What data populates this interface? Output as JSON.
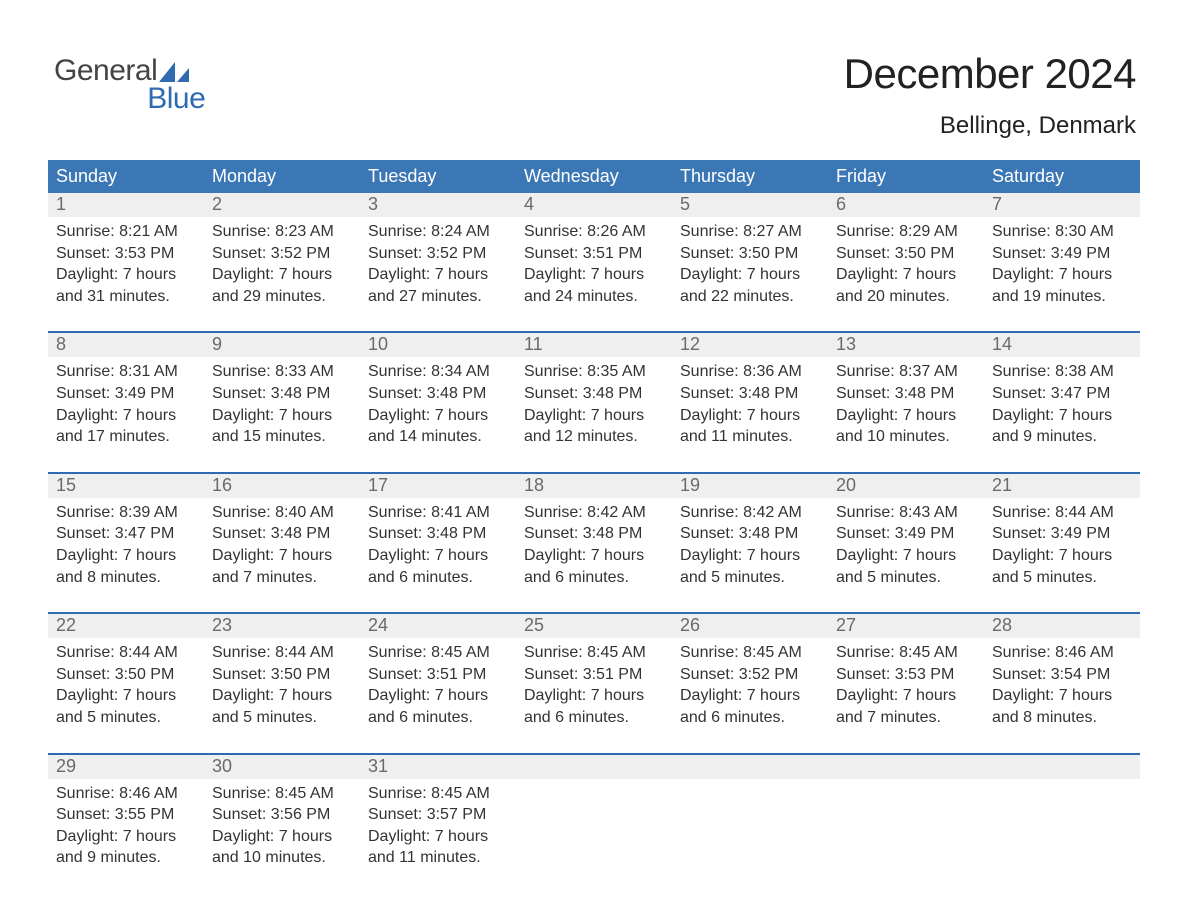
{
  "logo": {
    "text1": "General",
    "text2": "Blue",
    "color_text1": "#444444",
    "color_text2": "#2f6bb0",
    "sail_color": "#2f6bb0"
  },
  "header": {
    "month_title": "December 2024",
    "location": "Bellinge, Denmark",
    "title_fontsize": 42,
    "location_fontsize": 24,
    "title_color": "#222222"
  },
  "colors": {
    "calendar_header_bg": "#3c77b5",
    "calendar_header_text": "#ffffff",
    "week_separator": "#2f6bb0",
    "daynum_bg": "#efefef",
    "daynum_text": "#6a6a6a",
    "body_text": "#333333",
    "page_bg": "#ffffff"
  },
  "fonts": {
    "family": "Arial",
    "header_day_size": 18,
    "daynum_size": 18,
    "body_size": 16
  },
  "days_of_week": [
    "Sunday",
    "Monday",
    "Tuesday",
    "Wednesday",
    "Thursday",
    "Friday",
    "Saturday"
  ],
  "weeks": [
    [
      {
        "date": "1",
        "sunrise": "Sunrise: 8:21 AM",
        "sunset": "Sunset: 3:53 PM",
        "daylight1": "Daylight: 7 hours",
        "daylight2": "and 31 minutes."
      },
      {
        "date": "2",
        "sunrise": "Sunrise: 8:23 AM",
        "sunset": "Sunset: 3:52 PM",
        "daylight1": "Daylight: 7 hours",
        "daylight2": "and 29 minutes."
      },
      {
        "date": "3",
        "sunrise": "Sunrise: 8:24 AM",
        "sunset": "Sunset: 3:52 PM",
        "daylight1": "Daylight: 7 hours",
        "daylight2": "and 27 minutes."
      },
      {
        "date": "4",
        "sunrise": "Sunrise: 8:26 AM",
        "sunset": "Sunset: 3:51 PM",
        "daylight1": "Daylight: 7 hours",
        "daylight2": "and 24 minutes."
      },
      {
        "date": "5",
        "sunrise": "Sunrise: 8:27 AM",
        "sunset": "Sunset: 3:50 PM",
        "daylight1": "Daylight: 7 hours",
        "daylight2": "and 22 minutes."
      },
      {
        "date": "6",
        "sunrise": "Sunrise: 8:29 AM",
        "sunset": "Sunset: 3:50 PM",
        "daylight1": "Daylight: 7 hours",
        "daylight2": "and 20 minutes."
      },
      {
        "date": "7",
        "sunrise": "Sunrise: 8:30 AM",
        "sunset": "Sunset: 3:49 PM",
        "daylight1": "Daylight: 7 hours",
        "daylight2": "and 19 minutes."
      }
    ],
    [
      {
        "date": "8",
        "sunrise": "Sunrise: 8:31 AM",
        "sunset": "Sunset: 3:49 PM",
        "daylight1": "Daylight: 7 hours",
        "daylight2": "and 17 minutes."
      },
      {
        "date": "9",
        "sunrise": "Sunrise: 8:33 AM",
        "sunset": "Sunset: 3:48 PM",
        "daylight1": "Daylight: 7 hours",
        "daylight2": "and 15 minutes."
      },
      {
        "date": "10",
        "sunrise": "Sunrise: 8:34 AM",
        "sunset": "Sunset: 3:48 PM",
        "daylight1": "Daylight: 7 hours",
        "daylight2": "and 14 minutes."
      },
      {
        "date": "11",
        "sunrise": "Sunrise: 8:35 AM",
        "sunset": "Sunset: 3:48 PM",
        "daylight1": "Daylight: 7 hours",
        "daylight2": "and 12 minutes."
      },
      {
        "date": "12",
        "sunrise": "Sunrise: 8:36 AM",
        "sunset": "Sunset: 3:48 PM",
        "daylight1": "Daylight: 7 hours",
        "daylight2": "and 11 minutes."
      },
      {
        "date": "13",
        "sunrise": "Sunrise: 8:37 AM",
        "sunset": "Sunset: 3:48 PM",
        "daylight1": "Daylight: 7 hours",
        "daylight2": "and 10 minutes."
      },
      {
        "date": "14",
        "sunrise": "Sunrise: 8:38 AM",
        "sunset": "Sunset: 3:47 PM",
        "daylight1": "Daylight: 7 hours",
        "daylight2": "and 9 minutes."
      }
    ],
    [
      {
        "date": "15",
        "sunrise": "Sunrise: 8:39 AM",
        "sunset": "Sunset: 3:47 PM",
        "daylight1": "Daylight: 7 hours",
        "daylight2": "and 8 minutes."
      },
      {
        "date": "16",
        "sunrise": "Sunrise: 8:40 AM",
        "sunset": "Sunset: 3:48 PM",
        "daylight1": "Daylight: 7 hours",
        "daylight2": "and 7 minutes."
      },
      {
        "date": "17",
        "sunrise": "Sunrise: 8:41 AM",
        "sunset": "Sunset: 3:48 PM",
        "daylight1": "Daylight: 7 hours",
        "daylight2": "and 6 minutes."
      },
      {
        "date": "18",
        "sunrise": "Sunrise: 8:42 AM",
        "sunset": "Sunset: 3:48 PM",
        "daylight1": "Daylight: 7 hours",
        "daylight2": "and 6 minutes."
      },
      {
        "date": "19",
        "sunrise": "Sunrise: 8:42 AM",
        "sunset": "Sunset: 3:48 PM",
        "daylight1": "Daylight: 7 hours",
        "daylight2": "and 5 minutes."
      },
      {
        "date": "20",
        "sunrise": "Sunrise: 8:43 AM",
        "sunset": "Sunset: 3:49 PM",
        "daylight1": "Daylight: 7 hours",
        "daylight2": "and 5 minutes."
      },
      {
        "date": "21",
        "sunrise": "Sunrise: 8:44 AM",
        "sunset": "Sunset: 3:49 PM",
        "daylight1": "Daylight: 7 hours",
        "daylight2": "and 5 minutes."
      }
    ],
    [
      {
        "date": "22",
        "sunrise": "Sunrise: 8:44 AM",
        "sunset": "Sunset: 3:50 PM",
        "daylight1": "Daylight: 7 hours",
        "daylight2": "and 5 minutes."
      },
      {
        "date": "23",
        "sunrise": "Sunrise: 8:44 AM",
        "sunset": "Sunset: 3:50 PM",
        "daylight1": "Daylight: 7 hours",
        "daylight2": "and 5 minutes."
      },
      {
        "date": "24",
        "sunrise": "Sunrise: 8:45 AM",
        "sunset": "Sunset: 3:51 PM",
        "daylight1": "Daylight: 7 hours",
        "daylight2": "and 6 minutes."
      },
      {
        "date": "25",
        "sunrise": "Sunrise: 8:45 AM",
        "sunset": "Sunset: 3:51 PM",
        "daylight1": "Daylight: 7 hours",
        "daylight2": "and 6 minutes."
      },
      {
        "date": "26",
        "sunrise": "Sunrise: 8:45 AM",
        "sunset": "Sunset: 3:52 PM",
        "daylight1": "Daylight: 7 hours",
        "daylight2": "and 6 minutes."
      },
      {
        "date": "27",
        "sunrise": "Sunrise: 8:45 AM",
        "sunset": "Sunset: 3:53 PM",
        "daylight1": "Daylight: 7 hours",
        "daylight2": "and 7 minutes."
      },
      {
        "date": "28",
        "sunrise": "Sunrise: 8:46 AM",
        "sunset": "Sunset: 3:54 PM",
        "daylight1": "Daylight: 7 hours",
        "daylight2": "and 8 minutes."
      }
    ],
    [
      {
        "date": "29",
        "sunrise": "Sunrise: 8:46 AM",
        "sunset": "Sunset: 3:55 PM",
        "daylight1": "Daylight: 7 hours",
        "daylight2": "and 9 minutes."
      },
      {
        "date": "30",
        "sunrise": "Sunrise: 8:45 AM",
        "sunset": "Sunset: 3:56 PM",
        "daylight1": "Daylight: 7 hours",
        "daylight2": "and 10 minutes."
      },
      {
        "date": "31",
        "sunrise": "Sunrise: 8:45 AM",
        "sunset": "Sunset: 3:57 PM",
        "daylight1": "Daylight: 7 hours",
        "daylight2": "and 11 minutes."
      },
      {
        "date": "",
        "sunrise": "",
        "sunset": "",
        "daylight1": "",
        "daylight2": ""
      },
      {
        "date": "",
        "sunrise": "",
        "sunset": "",
        "daylight1": "",
        "daylight2": ""
      },
      {
        "date": "",
        "sunrise": "",
        "sunset": "",
        "daylight1": "",
        "daylight2": ""
      },
      {
        "date": "",
        "sunrise": "",
        "sunset": "",
        "daylight1": "",
        "daylight2": ""
      }
    ]
  ]
}
